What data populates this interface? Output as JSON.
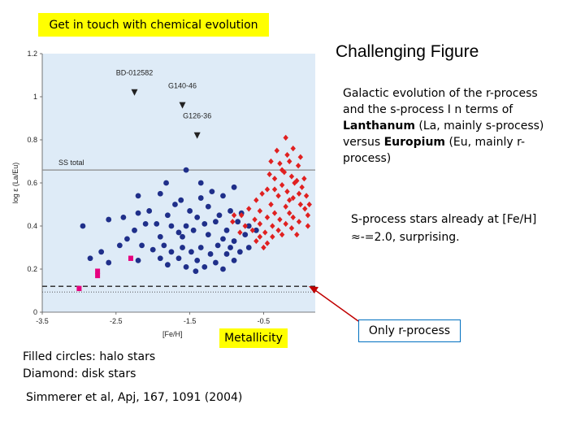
{
  "header": {
    "title": "Get in touch with chemical evolution"
  },
  "figure_title": "Challenging Figure",
  "description": {
    "part1": "Galactic evolution of the r-process and the s-process I n terms of ",
    "la_bold": "Lanthanum",
    "part2": " (La, mainly s-process) versus ",
    "eu_bold": "Europium",
    "part3": " (Eu, mainly r-process)"
  },
  "sprocess_note": "S-process stars already at [Fe/H] ≈-=2.0, surprising.",
  "metallicity_label": "Metallicity",
  "only_r_label": "Only r-process",
  "legend_notes": {
    "line1": "Filled circles: halo stars",
    "line2": "Diamond: disk stars"
  },
  "citation": "Simmerer et al, Apj, 167, 1091 (2004)",
  "colors": {
    "panel_bg": "#deebf7",
    "halo": "#1f2f8a",
    "disk": "#e02020",
    "magenta": "#e6007e",
    "highlight": "#ffff00",
    "arrow": "#c00000"
  },
  "chart_data": {
    "type": "scatter",
    "xlabel": "[Fe/H]",
    "ylabel": "log ε (La/Eu)",
    "xlim": [
      -3.5,
      0.2
    ],
    "ylim": [
      0,
      1.2
    ],
    "xticks": [
      -3.5,
      -2.5,
      -1.5,
      -0.5
    ],
    "yticks": [
      0,
      0.2,
      0.4,
      0.6,
      0.8,
      1.0,
      1.2
    ],
    "ytick_labels": [
      "0",
      "0.2",
      "0.4",
      "0.6",
      "0.8",
      "1",
      "1.2"
    ],
    "xtick_labels": [
      "-3.5",
      "-2.5",
      "-1.5",
      "-0.5"
    ],
    "ss_total": {
      "label": "SS total",
      "y": 0.66
    },
    "r_process_line": {
      "y": 0.12
    },
    "annotations": [
      {
        "label": "BD-012582",
        "x": -2.25,
        "y": 1.02,
        "label_y": 1.1
      },
      {
        "label": "G140-46",
        "x": -1.6,
        "y": 0.96,
        "label_y": 1.04
      },
      {
        "label": "G126-36",
        "x": -1.4,
        "y": 0.82,
        "label_y": 0.9
      }
    ],
    "series": [
      {
        "marker": "circle",
        "color": "#1f2f8a",
        "points": [
          [
            -1.55,
            0.66
          ],
          [
            -1.35,
            0.6
          ],
          [
            -1.82,
            0.6
          ],
          [
            -1.62,
            0.52
          ],
          [
            -1.2,
            0.56
          ],
          [
            -1.05,
            0.54
          ],
          [
            -0.9,
            0.58
          ],
          [
            -1.35,
            0.53
          ],
          [
            -1.9,
            0.55
          ],
          [
            -2.2,
            0.54
          ],
          [
            -1.7,
            0.5
          ],
          [
            -1.5,
            0.47
          ],
          [
            -1.25,
            0.49
          ],
          [
            -2.05,
            0.47
          ],
          [
            -2.4,
            0.44
          ],
          [
            -2.2,
            0.46
          ],
          [
            -1.8,
            0.45
          ],
          [
            -1.4,
            0.44
          ],
          [
            -1.1,
            0.45
          ],
          [
            -0.95,
            0.47
          ],
          [
            -0.8,
            0.46
          ],
          [
            -2.95,
            0.4
          ],
          [
            -2.6,
            0.43
          ],
          [
            -2.1,
            0.41
          ],
          [
            -1.95,
            0.41
          ],
          [
            -1.75,
            0.4
          ],
          [
            -1.55,
            0.4
          ],
          [
            -1.3,
            0.41
          ],
          [
            -1.15,
            0.42
          ],
          [
            -0.85,
            0.42
          ],
          [
            -0.7,
            0.4
          ],
          [
            -2.25,
            0.38
          ],
          [
            -1.65,
            0.37
          ],
          [
            -1.45,
            0.38
          ],
          [
            -1.0,
            0.38
          ],
          [
            -0.75,
            0.36
          ],
          [
            -0.6,
            0.38
          ],
          [
            -2.35,
            0.34
          ],
          [
            -1.9,
            0.35
          ],
          [
            -1.6,
            0.35
          ],
          [
            -1.25,
            0.36
          ],
          [
            -1.05,
            0.34
          ],
          [
            -0.9,
            0.33
          ],
          [
            -2.15,
            0.31
          ],
          [
            -1.85,
            0.31
          ],
          [
            -1.6,
            0.3
          ],
          [
            -1.35,
            0.3
          ],
          [
            -1.12,
            0.31
          ],
          [
            -0.95,
            0.3
          ],
          [
            -0.7,
            0.3
          ],
          [
            -2.7,
            0.28
          ],
          [
            -2.45,
            0.31
          ],
          [
            -2.0,
            0.29
          ],
          [
            -1.75,
            0.28
          ],
          [
            -1.48,
            0.28
          ],
          [
            -1.22,
            0.27
          ],
          [
            -1.0,
            0.27
          ],
          [
            -0.82,
            0.28
          ],
          [
            -2.85,
            0.25
          ],
          [
            -2.6,
            0.23
          ],
          [
            -2.2,
            0.24
          ],
          [
            -1.9,
            0.25
          ],
          [
            -1.65,
            0.25
          ],
          [
            -1.4,
            0.24
          ],
          [
            -1.15,
            0.23
          ],
          [
            -0.9,
            0.24
          ],
          [
            -1.55,
            0.21
          ],
          [
            -1.3,
            0.21
          ],
          [
            -1.05,
            0.2
          ],
          [
            -1.8,
            0.22
          ],
          [
            -1.42,
            0.19
          ]
        ]
      },
      {
        "marker": "diamond",
        "color": "#e02020",
        "points": [
          [
            -0.2,
            0.81
          ],
          [
            -0.32,
            0.75
          ],
          [
            -0.1,
            0.76
          ],
          [
            -0.28,
            0.69
          ],
          [
            -0.15,
            0.7
          ],
          [
            -0.03,
            0.68
          ],
          [
            -0.22,
            0.65
          ],
          [
            -0.4,
            0.7
          ],
          [
            0.0,
            0.72
          ],
          [
            -0.12,
            0.63
          ],
          [
            -0.35,
            0.62
          ],
          [
            -0.05,
            0.61
          ],
          [
            -0.25,
            0.59
          ],
          [
            0.05,
            0.62
          ],
          [
            -0.45,
            0.57
          ],
          [
            -0.18,
            0.56
          ],
          [
            0.02,
            0.58
          ],
          [
            -0.52,
            0.55
          ],
          [
            -0.3,
            0.54
          ],
          [
            -0.1,
            0.53
          ],
          [
            0.08,
            0.54
          ],
          [
            -0.6,
            0.52
          ],
          [
            -0.4,
            0.5
          ],
          [
            -0.2,
            0.49
          ],
          [
            0.0,
            0.5
          ],
          [
            -0.7,
            0.48
          ],
          [
            -0.55,
            0.47
          ],
          [
            -0.35,
            0.46
          ],
          [
            -0.15,
            0.46
          ],
          [
            0.06,
            0.48
          ],
          [
            -0.8,
            0.45
          ],
          [
            -0.62,
            0.43
          ],
          [
            -0.45,
            0.44
          ],
          [
            -0.28,
            0.43
          ],
          [
            -0.1,
            0.44
          ],
          [
            0.1,
            0.45
          ],
          [
            -0.92,
            0.42
          ],
          [
            -0.75,
            0.4
          ],
          [
            -0.55,
            0.41
          ],
          [
            -0.38,
            0.4
          ],
          [
            -0.2,
            0.41
          ],
          [
            -0.02,
            0.42
          ],
          [
            -0.65,
            0.38
          ],
          [
            -0.48,
            0.37
          ],
          [
            -0.3,
            0.38
          ],
          [
            -0.12,
            0.39
          ],
          [
            -0.82,
            0.37
          ],
          [
            -0.55,
            0.35
          ],
          [
            -0.38,
            0.35
          ],
          [
            -0.6,
            0.33
          ],
          [
            -0.45,
            0.32
          ],
          [
            -0.5,
            0.3
          ],
          [
            -0.25,
            0.36
          ],
          [
            -0.05,
            0.36
          ],
          [
            0.1,
            0.4
          ],
          [
            -0.9,
            0.45
          ],
          [
            -0.15,
            0.52
          ],
          [
            -0.02,
            0.55
          ],
          [
            0.12,
            0.5
          ],
          [
            -0.35,
            0.57
          ],
          [
            -0.08,
            0.6
          ],
          [
            -0.25,
            0.66
          ],
          [
            -0.42,
            0.64
          ],
          [
            -0.18,
            0.73
          ]
        ]
      },
      {
        "marker": "square",
        "color": "#e6007e",
        "points": [
          [
            -3.0,
            0.11
          ],
          [
            -2.75,
            0.17
          ],
          [
            -2.75,
            0.19
          ],
          [
            -2.3,
            0.25
          ]
        ]
      }
    ]
  }
}
